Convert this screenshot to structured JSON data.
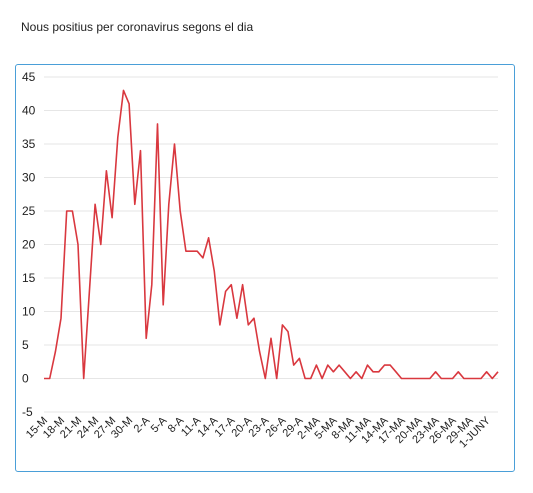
{
  "page": {
    "title": "Nous positius per coronavirus segons el dia"
  },
  "chart_data": {
    "type": "line",
    "title": "Nous positius per coronavirus segons el dia",
    "xlabel": "",
    "ylabel": "",
    "ylim": [
      -5,
      45
    ],
    "yticks": [
      45,
      40,
      35,
      30,
      25,
      20,
      15,
      10,
      5,
      0,
      -5
    ],
    "grid": true,
    "line_color": "#d9383f",
    "x_tick_labels": [
      "15-M",
      "18-M",
      "21-M",
      "24-M",
      "27-M",
      "30-M",
      "2-A",
      "5-A",
      "8-A",
      "11-A",
      "14-A",
      "17-A",
      "20-A",
      "23-A",
      "26-A",
      "29-A",
      "2-MA",
      "5-MA",
      "8-MA",
      "11-MA",
      "14-MA",
      "17-MA",
      "20-MA",
      "23-MA",
      "26-MA",
      "29-MA",
      "1-JUNY"
    ],
    "series": [
      {
        "values": [
          0,
          0,
          4,
          9,
          25,
          25,
          20,
          0,
          13,
          26,
          20,
          31,
          24,
          36,
          43,
          41,
          26,
          34,
          6,
          14,
          38,
          11,
          26,
          35,
          25,
          19,
          19,
          19,
          18,
          21,
          16,
          8,
          13,
          14,
          9,
          14,
          8,
          9,
          4,
          0,
          6,
          0,
          8,
          7,
          2,
          3,
          0,
          0,
          2,
          0,
          2,
          1,
          2,
          1,
          0,
          1,
          0,
          2,
          1,
          1,
          2,
          2,
          1,
          0,
          0,
          0,
          0,
          0,
          0,
          1,
          0,
          0,
          0,
          1,
          0,
          0,
          0,
          0,
          1,
          0,
          1
        ]
      }
    ]
  }
}
